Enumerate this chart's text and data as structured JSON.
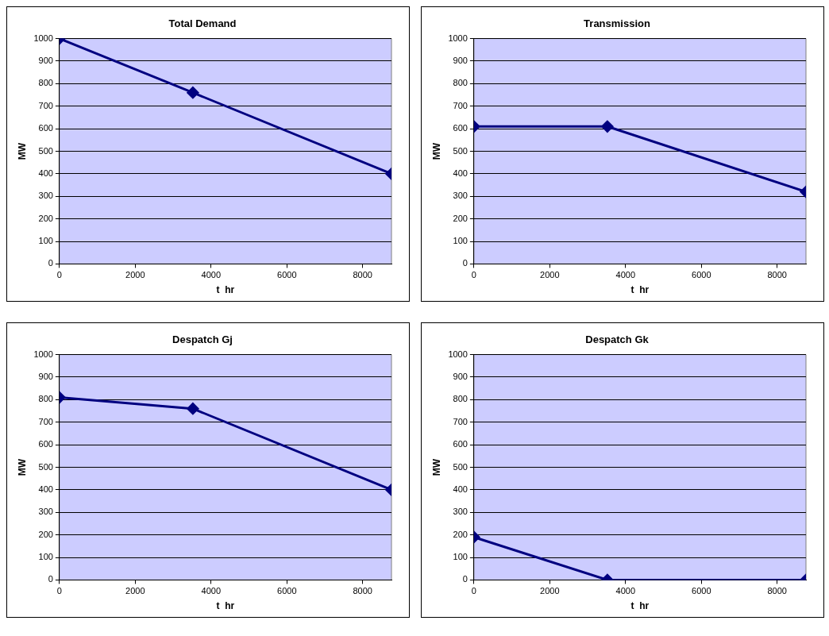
{
  "chart_data": [
    {
      "type": "line",
      "title": "Total Demand",
      "xlabel": "t  hr",
      "ylabel": "MW",
      "x": [
        0,
        3520,
        8760
      ],
      "series": [
        {
          "color": "#000080",
          "values": [
            1000,
            760,
            400
          ]
        }
      ],
      "xlim": [
        0,
        8760
      ],
      "xticks": [
        0,
        2000,
        4000,
        6000,
        8000
      ],
      "ylim": [
        0,
        1000
      ],
      "yticks": [
        0,
        100,
        200,
        300,
        400,
        500,
        600,
        700,
        800,
        900,
        1000
      ],
      "grid": "y",
      "legend": false,
      "marker": "diamond",
      "line_style": "solid"
    },
    {
      "type": "line",
      "title": "Transmission",
      "xlabel": "t  hr",
      "ylabel": "MW",
      "x": [
        0,
        3520,
        8760
      ],
      "series": [
        {
          "color": "#000080",
          "values": [
            610,
            610,
            320
          ]
        }
      ],
      "xlim": [
        0,
        8760
      ],
      "xticks": [
        0,
        2000,
        4000,
        6000,
        8000
      ],
      "ylim": [
        0,
        1000
      ],
      "yticks": [
        0,
        100,
        200,
        300,
        400,
        500,
        600,
        700,
        800,
        900,
        1000
      ],
      "grid": "y",
      "legend": false,
      "marker": "diamond",
      "line_style": "solid"
    },
    {
      "type": "line",
      "title": "Despatch Gj",
      "xlabel": "t  hr",
      "ylabel": "MW",
      "x": [
        0,
        3520,
        8760
      ],
      "series": [
        {
          "color": "#000080",
          "values": [
            810,
            760,
            400
          ]
        }
      ],
      "xlim": [
        0,
        8760
      ],
      "xticks": [
        0,
        2000,
        4000,
        6000,
        8000
      ],
      "ylim": [
        0,
        1000
      ],
      "yticks": [
        0,
        100,
        200,
        300,
        400,
        500,
        600,
        700,
        800,
        900,
        1000
      ],
      "grid": "y",
      "legend": false,
      "marker": "diamond",
      "line_style": "solid"
    },
    {
      "type": "line",
      "title": "Despatch Gk",
      "xlabel": "t  hr",
      "ylabel": "MW",
      "x": [
        0,
        3520,
        8760
      ],
      "series": [
        {
          "color": "#000080",
          "values": [
            190,
            0,
            0
          ]
        }
      ],
      "xlim": [
        0,
        8760
      ],
      "xticks": [
        0,
        2000,
        4000,
        6000,
        8000
      ],
      "ylim": [
        0,
        1000
      ],
      "yticks": [
        0,
        100,
        200,
        300,
        400,
        500,
        600,
        700,
        800,
        900,
        1000
      ],
      "grid": "y",
      "legend": false,
      "marker": "diamond",
      "line_style": "solid"
    }
  ]
}
